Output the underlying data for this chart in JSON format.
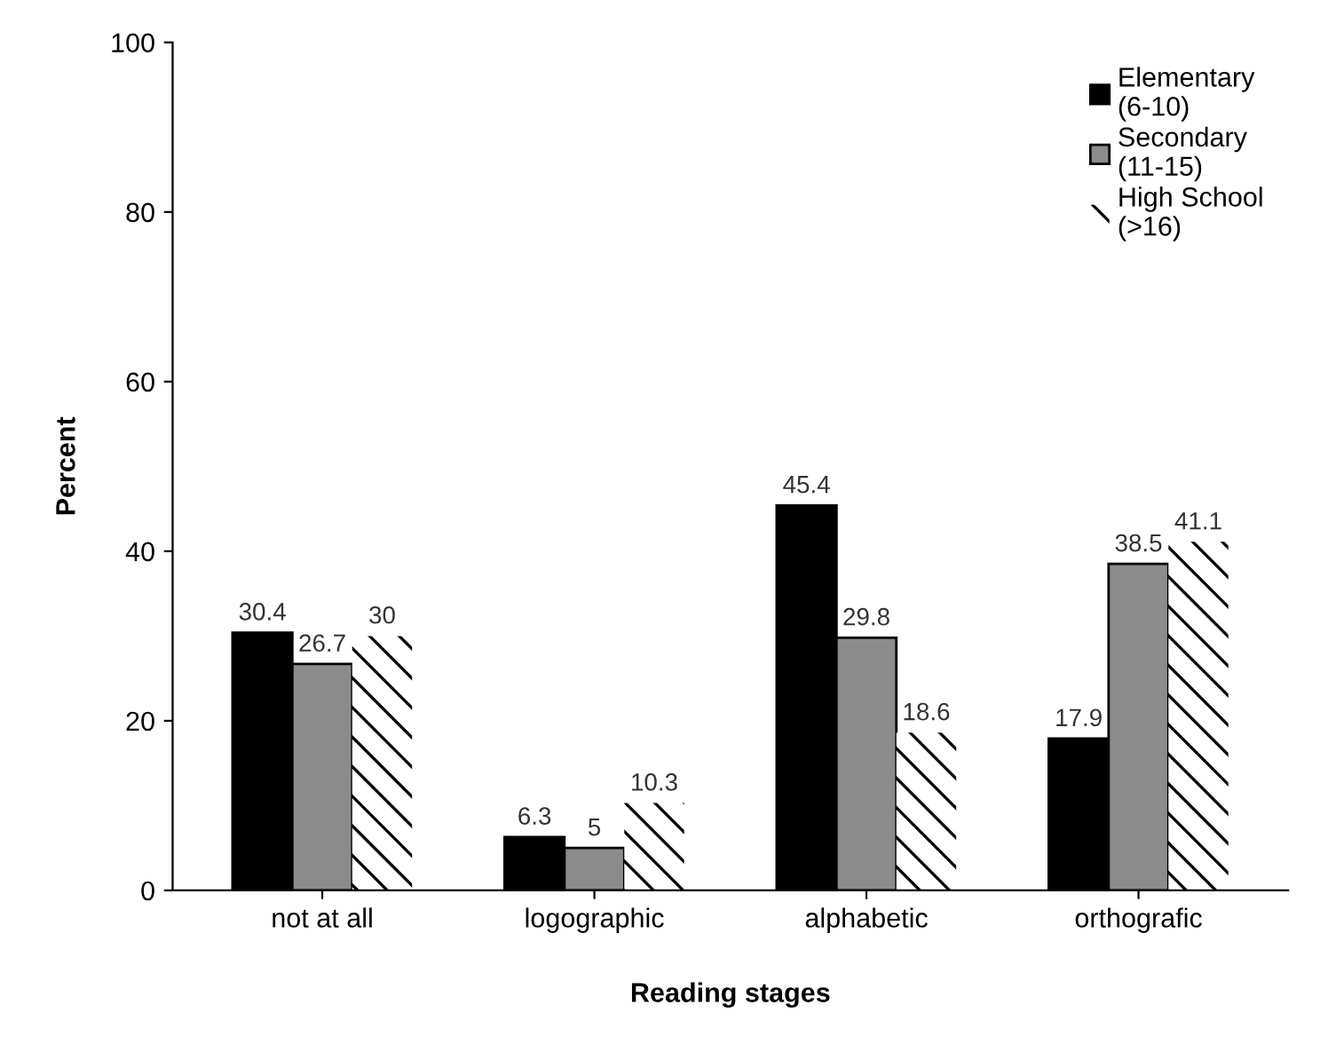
{
  "chart_data": {
    "type": "bar",
    "xlabel": "Reading stages",
    "ylabel": "Percent",
    "categories": [
      "not at all",
      "logographic",
      "alphabetic",
      "orthografic"
    ],
    "series": [
      {
        "name": "Elementary\n(6-10)",
        "color": "#000000",
        "values": [
          30.4,
          6.3,
          45.4,
          17.9
        ]
      },
      {
        "name": "Secondary\n(11-15)",
        "color": "#8c8c8c",
        "values": [
          26.7,
          5,
          29.8,
          38.5
        ]
      },
      {
        "name": "High School\n(>16)",
        "color": "#ffffff",
        "values": [
          30,
          10.3,
          18.6,
          41.1
        ]
      }
    ],
    "ylim": [
      0,
      100
    ],
    "yticks": [
      0,
      20,
      40,
      60,
      80,
      100
    ],
    "data_labels": true,
    "legend": "top right",
    "grid": false
  }
}
